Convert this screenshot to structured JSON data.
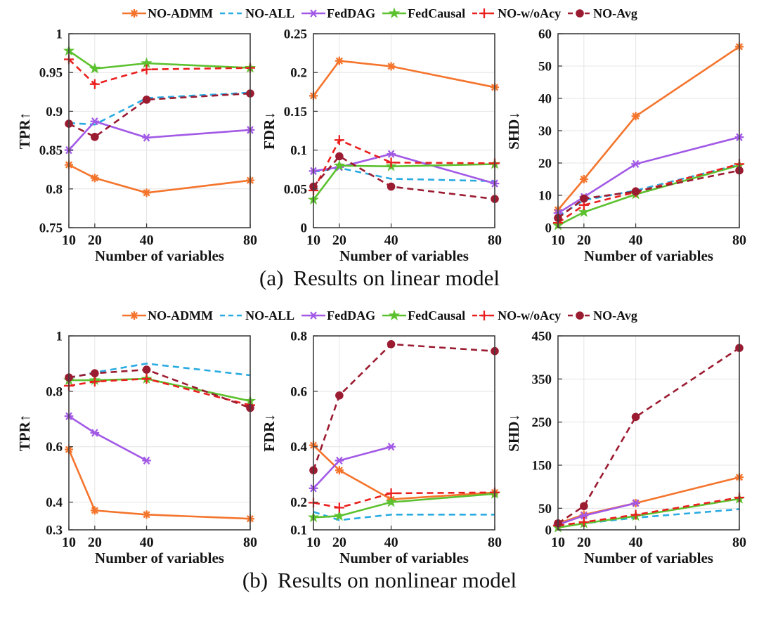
{
  "page": {
    "background": "#ffffff"
  },
  "legend": {
    "entries": [
      {
        "name": "NO-ADMM",
        "color": "#F4742C",
        "dash": "solid",
        "marker": "asterisk"
      },
      {
        "name": "NO-ALL",
        "color": "#29ABE2",
        "dash": "dashed",
        "marker": "none"
      },
      {
        "name": "FedDAG",
        "color": "#A259E6",
        "dash": "solid",
        "marker": "xline"
      },
      {
        "name": "FedCausal",
        "color": "#5CC12E",
        "dash": "solid",
        "marker": "star"
      },
      {
        "name": "NO-w/oAcy",
        "color": "#EA201E",
        "dash": "dashed",
        "marker": "plus"
      },
      {
        "name": "NO-Avg",
        "color": "#9B1B31",
        "dash": "dashed",
        "marker": "dot"
      }
    ]
  },
  "panels": [
    {
      "caption_label": "(a)",
      "caption_text": "Results on linear model"
    },
    {
      "caption_label": "(b)",
      "caption_text": "Results on nonlinear model"
    }
  ],
  "chart_data": [
    {
      "id": "tpr-linear",
      "type": "line",
      "panel": "a",
      "xlabel": "Number of variables",
      "ylabel": "TPR↑",
      "x": [
        10,
        20,
        40,
        80
      ],
      "xlim": [
        10,
        80
      ],
      "xtick_labels": [
        "10",
        "20",
        "40",
        "80"
      ],
      "ylim": [
        0.75,
        1
      ],
      "yticks": [
        0.75,
        0.8,
        0.85,
        0.9,
        0.95,
        1
      ],
      "ytick_labels": [
        "0.75",
        "0.8",
        "0.85",
        "0.9",
        "0.95",
        "1"
      ],
      "grid": true,
      "legend_position": "top",
      "series": [
        {
          "name": "NO-ADMM",
          "values": [
            0.831,
            0.814,
            0.795,
            0.811
          ]
        },
        {
          "name": "NO-ALL",
          "values": [
            0.885,
            0.883,
            0.917,
            0.924
          ]
        },
        {
          "name": "FedDAG",
          "values": [
            0.85,
            0.887,
            0.866,
            0.876
          ]
        },
        {
          "name": "FedCausal",
          "values": [
            0.978,
            0.955,
            0.962,
            0.956
          ]
        },
        {
          "name": "NO-w/oAcy",
          "values": [
            0.967,
            0.935,
            0.954,
            0.956
          ]
        },
        {
          "name": "NO-Avg",
          "values": [
            0.884,
            0.867,
            0.915,
            0.923
          ]
        }
      ]
    },
    {
      "id": "fdr-linear",
      "type": "line",
      "panel": "a",
      "xlabel": "Number of variables",
      "ylabel": "FDR↓",
      "x": [
        10,
        20,
        40,
        80
      ],
      "xlim": [
        10,
        80
      ],
      "xtick_labels": [
        "10",
        "20",
        "40",
        "80"
      ],
      "ylim": [
        0,
        0.25
      ],
      "yticks": [
        0,
        0.05,
        0.1,
        0.15,
        0.2,
        0.25
      ],
      "ytick_labels": [
        "0",
        "0.05",
        "0.1",
        "0.15",
        "0.2",
        "0.25"
      ],
      "grid": true,
      "legend_position": "top",
      "series": [
        {
          "name": "NO-ADMM",
          "values": [
            0.17,
            0.215,
            0.208,
            0.181
          ]
        },
        {
          "name": "NO-ALL",
          "values": [
            0.072,
            0.077,
            0.063,
            0.06
          ]
        },
        {
          "name": "FedDAG",
          "values": [
            0.073,
            0.078,
            0.095,
            0.057
          ]
        },
        {
          "name": "FedCausal",
          "values": [
            0.036,
            0.08,
            0.079,
            0.082
          ]
        },
        {
          "name": "NO-w/oAcy",
          "values": [
            0.048,
            0.113,
            0.084,
            0.083
          ]
        },
        {
          "name": "NO-Avg",
          "values": [
            0.053,
            0.092,
            0.053,
            0.037
          ]
        }
      ]
    },
    {
      "id": "shd-linear",
      "type": "line",
      "panel": "a",
      "xlabel": "Number of variables",
      "ylabel": "SHD↓",
      "x": [
        10,
        20,
        40,
        80
      ],
      "xlim": [
        10,
        80
      ],
      "xtick_labels": [
        "10",
        "20",
        "40",
        "80"
      ],
      "ylim": [
        0,
        60
      ],
      "yticks": [
        0,
        10,
        20,
        30,
        40,
        50,
        60
      ],
      "ytick_labels": [
        "0",
        "10",
        "20",
        "30",
        "40",
        "50",
        "60"
      ],
      "grid": true,
      "legend_position": "top",
      "series": [
        {
          "name": "NO-ADMM",
          "values": [
            5.5,
            15,
            34.5,
            56
          ]
        },
        {
          "name": "NO-ALL",
          "values": [
            3.5,
            8.5,
            11.5,
            19.5
          ]
        },
        {
          "name": "FedDAG",
          "values": [
            4.5,
            9.5,
            19.7,
            28
          ]
        },
        {
          "name": "FedCausal",
          "values": [
            0.7,
            4.8,
            10.3,
            19.3
          ]
        },
        {
          "name": "NO-w/oAcy",
          "values": [
            1.5,
            7,
            11,
            19.7
          ]
        },
        {
          "name": "NO-Avg",
          "values": [
            3,
            9,
            11.2,
            17.7
          ]
        }
      ]
    },
    {
      "id": "tpr-nonlinear",
      "type": "line",
      "panel": "b",
      "xlabel": "Number of variables",
      "ylabel": "TPR↑",
      "x": [
        10,
        20,
        40,
        80
      ],
      "xlim": [
        10,
        80
      ],
      "xtick_labels": [
        "10",
        "20",
        "40",
        "80"
      ],
      "ylim": [
        0.3,
        1
      ],
      "yticks": [
        0.3,
        0.4,
        0.6,
        0.8,
        1
      ],
      "ytick_labels": [
        "0.3",
        "0.4",
        "0.6",
        "0.8",
        "1"
      ],
      "grid": true,
      "legend_position": "top",
      "series": [
        {
          "name": "NO-ADMM",
          "values": [
            0.59,
            0.37,
            0.355,
            0.34
          ]
        },
        {
          "name": "NO-ALL",
          "values": [
            0.848,
            0.868,
            0.9,
            0.858
          ]
        },
        {
          "name": "FedDAG",
          "values": [
            0.71,
            0.65,
            0.55,
            null
          ]
        },
        {
          "name": "FedCausal",
          "values": [
            0.84,
            0.84,
            0.845,
            0.765
          ]
        },
        {
          "name": "NO-w/oAcy",
          "values": [
            0.82,
            0.835,
            0.845,
            0.75
          ]
        },
        {
          "name": "NO-Avg",
          "values": [
            0.85,
            0.865,
            0.878,
            0.74
          ]
        }
      ]
    },
    {
      "id": "fdr-nonlinear",
      "type": "line",
      "panel": "b",
      "xlabel": "Number of variables",
      "ylabel": "FDR↓",
      "x": [
        10,
        20,
        40,
        80
      ],
      "xlim": [
        10,
        80
      ],
      "xtick_labels": [
        "10",
        "20",
        "40",
        "80"
      ],
      "ylim": [
        0.1,
        0.8
      ],
      "yticks": [
        0.1,
        0.2,
        0.4,
        0.6,
        0.8
      ],
      "ytick_labels": [
        "0.1",
        "0.2",
        "0.4",
        "0.6",
        "0.8"
      ],
      "grid": true,
      "legend_position": "top",
      "series": [
        {
          "name": "NO-ADMM",
          "values": [
            0.405,
            0.315,
            0.21,
            0.235
          ]
        },
        {
          "name": "NO-ALL",
          "values": [
            0.165,
            0.135,
            0.155,
            0.155
          ]
        },
        {
          "name": "FedDAG",
          "values": [
            0.25,
            0.35,
            0.4,
            null
          ]
        },
        {
          "name": "FedCausal",
          "values": [
            0.145,
            0.15,
            0.2,
            0.23
          ]
        },
        {
          "name": "NO-w/oAcy",
          "values": [
            0.198,
            0.18,
            0.232,
            0.235
          ]
        },
        {
          "name": "NO-Avg",
          "values": [
            0.315,
            0.585,
            0.77,
            0.745
          ]
        }
      ]
    },
    {
      "id": "shd-nonlinear",
      "type": "line",
      "panel": "b",
      "xlabel": "Number of variables",
      "ylabel": "SHD↓",
      "x": [
        10,
        20,
        40,
        80
      ],
      "xlim": [
        10,
        80
      ],
      "xtick_labels": [
        "10",
        "20",
        "40",
        "80"
      ],
      "ylim": [
        0,
        450
      ],
      "yticks": [
        0,
        50,
        150,
        250,
        350,
        450
      ],
      "ytick_labels": [
        "0",
        "50",
        "150",
        "250",
        "350",
        "450"
      ],
      "grid": true,
      "legend_position": "top",
      "series": [
        {
          "name": "NO-ADMM",
          "values": [
            15,
            35,
            62,
            122
          ]
        },
        {
          "name": "NO-ALL",
          "values": [
            8,
            15,
            28,
            48
          ]
        },
        {
          "name": "FedDAG",
          "values": [
            12,
            33,
            62,
            null
          ]
        },
        {
          "name": "FedCausal",
          "values": [
            5,
            15,
            32,
            72
          ]
        },
        {
          "name": "NO-w/oAcy",
          "values": [
            10,
            18,
            35,
            75
          ]
        },
        {
          "name": "NO-Avg",
          "values": [
            15,
            55,
            262,
            422
          ]
        }
      ]
    }
  ]
}
